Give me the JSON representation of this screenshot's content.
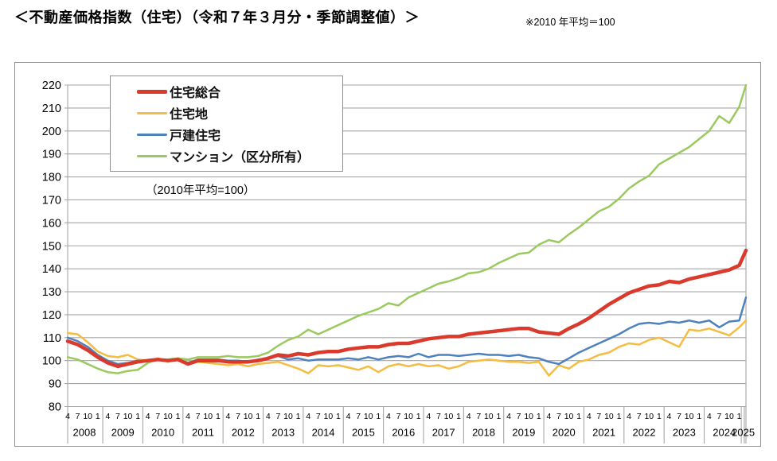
{
  "page": {
    "title": "＜不動産価格指数（住宅）（令和７年３月分・季節調整値）＞",
    "note": "※2010 年平均＝100"
  },
  "chart_data": {
    "type": "line",
    "title": "不動産価格指数（住宅）（令和７年３月分・季節調整値）",
    "inner_note": "（2010年平均=100）",
    "y_axis": {
      "min": 80,
      "max": 220,
      "step": 10
    },
    "x_axis": {
      "unit": "month",
      "start": "2008-04",
      "end": "2025-03",
      "quarter_tick_labels": [
        "4",
        "7",
        "10",
        "1"
      ],
      "year_labels": [
        "2008",
        "2009",
        "2010",
        "2011",
        "2012",
        "2013",
        "2014",
        "2015",
        "2016",
        "2017",
        "2018",
        "2019",
        "2020",
        "2021",
        "2022",
        "2023",
        "2024",
        "2025"
      ]
    },
    "x_months_since_2008_04": [
      0,
      3,
      6,
      9,
      12,
      15,
      18,
      21,
      24,
      27,
      30,
      33,
      36,
      39,
      42,
      45,
      48,
      51,
      54,
      57,
      60,
      63,
      66,
      69,
      72,
      75,
      78,
      81,
      84,
      87,
      90,
      93,
      96,
      99,
      102,
      105,
      108,
      111,
      114,
      117,
      120,
      123,
      126,
      129,
      132,
      135,
      138,
      141,
      144,
      147,
      150,
      153,
      156,
      159,
      162,
      165,
      168,
      171,
      174,
      177,
      180,
      183,
      186,
      189,
      192,
      195,
      198,
      201,
      203
    ],
    "series": [
      {
        "key": "jutaku-sogo",
        "name": "住宅総合",
        "color": "#d93a2b",
        "width": 4.5,
        "values": [
          108.5,
          107,
          104.5,
          101.5,
          99,
          97.5,
          98.5,
          99.5,
          100,
          100.5,
          100,
          100.5,
          98.5,
          100,
          100,
          100,
          99.5,
          99.5,
          99.5,
          100,
          101,
          102.5,
          102,
          103,
          102.5,
          103.5,
          104,
          104,
          105,
          105.5,
          106,
          106,
          107,
          107.5,
          107.5,
          108.5,
          109.5,
          110,
          110.5,
          110.5,
          111.5,
          112,
          112.5,
          113,
          113.5,
          114,
          114,
          112.5,
          112,
          111.5,
          114,
          116,
          118.5,
          121.5,
          124.5,
          127,
          129.5,
          131,
          132.5,
          133,
          134.5,
          134,
          135.5,
          136.5,
          137.5,
          138.5,
          139.5,
          141.5,
          148
        ]
      },
      {
        "key": "jutakuchi",
        "name": "住宅地",
        "color": "#f5bc42",
        "width": 2.5,
        "values": [
          112,
          111.5,
          108,
          104,
          102,
          101.5,
          102.5,
          100.5,
          100,
          101,
          99.5,
          100.5,
          98.5,
          99.5,
          99,
          98.5,
          98,
          98.5,
          97.5,
          98.5,
          99,
          99.5,
          98,
          96.5,
          94.5,
          98,
          97.5,
          98,
          97,
          96,
          97.5,
          95,
          97.5,
          98.5,
          97.5,
          98.5,
          97.5,
          98,
          96.5,
          97.5,
          99.5,
          100,
          100.5,
          100,
          99.5,
          99.5,
          99,
          99.5,
          93.5,
          98,
          96.5,
          99.5,
          100.5,
          102.5,
          103.5,
          106,
          107.5,
          107,
          109,
          110,
          108,
          106,
          113.5,
          113,
          114,
          112.5,
          111,
          114.5,
          117.5
        ]
      },
      {
        "key": "kodate-jutaku",
        "name": "戸建住宅",
        "color": "#4f81bd",
        "width": 2.5,
        "values": [
          110,
          108.5,
          106,
          102.5,
          100,
          98.5,
          99,
          100,
          100,
          100.5,
          100,
          100.5,
          99,
          100.5,
          100.5,
          100.5,
          100,
          100,
          99.5,
          100.5,
          101,
          102,
          100.5,
          101,
          100,
          100.5,
          100.5,
          100.5,
          101,
          100.5,
          101.5,
          100.5,
          101.5,
          102,
          101.5,
          103,
          101.5,
          102.5,
          102.5,
          102,
          102.5,
          103,
          102.5,
          102.5,
          102,
          102.5,
          101.5,
          101,
          99.5,
          98.5,
          101,
          103.5,
          105.5,
          107.5,
          109.5,
          111.5,
          114,
          116,
          116.5,
          116,
          117,
          116.5,
          117.5,
          116.5,
          117.5,
          114.5,
          117,
          117.5,
          127.5
        ]
      },
      {
        "key": "mansion",
        "name": "マンション（区分所有）",
        "color": "#9aca5e",
        "width": 2.5,
        "values": [
          101.5,
          100.5,
          98.5,
          96.5,
          95,
          94.5,
          95.5,
          96,
          99,
          100.5,
          100.5,
          101,
          100.5,
          101.5,
          101.5,
          101.5,
          102,
          101.5,
          101.5,
          102,
          103.5,
          106.5,
          109,
          110.5,
          113.5,
          111.5,
          113.5,
          115.5,
          117.5,
          119.5,
          121,
          122.5,
          125,
          124,
          127.5,
          129.5,
          131.5,
          133.5,
          134.5,
          136,
          138,
          138.5,
          140,
          142.5,
          144.5,
          146.5,
          147,
          150.5,
          152.5,
          151.5,
          155,
          158,
          161.5,
          165,
          167,
          170.5,
          175,
          178,
          180.5,
          185.5,
          188,
          190.5,
          193,
          196.5,
          200,
          206.5,
          203.5,
          210.5,
          220
        ]
      }
    ],
    "colors": {
      "grid": "#a6a6a6",
      "frame": "#8f8f8f",
      "text": "#000000"
    },
    "legend_position": "top-left-inside",
    "grid": true
  }
}
